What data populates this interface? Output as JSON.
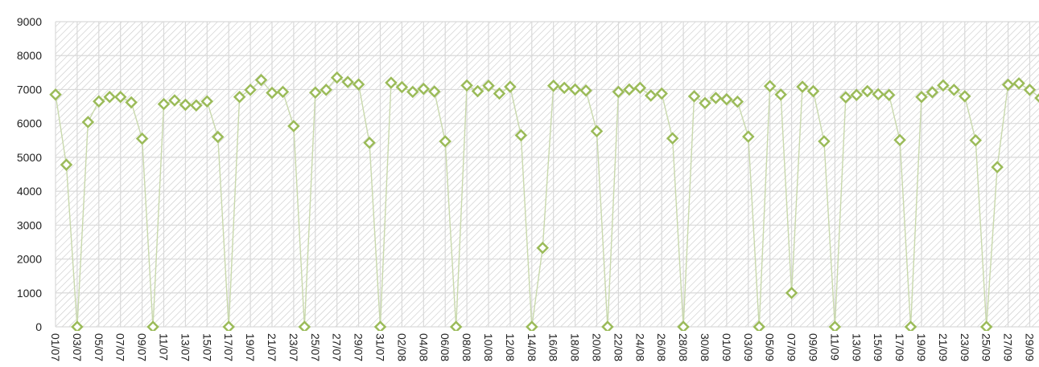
{
  "colors": {
    "series": "#9bbb59",
    "line": "#c9d9ad",
    "grid": "#d9d9d9",
    "hatch": "#bfbfbf"
  },
  "chart_data": {
    "type": "line",
    "grid": true,
    "hatched_background": true,
    "marker": "diamond",
    "ylim": [
      0,
      9000
    ],
    "y_ticks": [
      0,
      1000,
      2000,
      3000,
      4000,
      5000,
      6000,
      7000,
      8000,
      9000
    ],
    "x_tick_labels": [
      "01/07",
      "03/07",
      "05/07",
      "07/07",
      "09/07",
      "11/07",
      "13/07",
      "15/07",
      "17/07",
      "19/07",
      "21/07",
      "23/07",
      "25/07",
      "27/07",
      "29/07",
      "31/07",
      "02/08",
      "04/08",
      "06/08",
      "08/08",
      "10/08",
      "12/08",
      "14/08",
      "16/08",
      "18/08",
      "20/08",
      "22/08",
      "24/08",
      "26/08",
      "28/08",
      "30/08",
      "01/09",
      "03/09",
      "05/09",
      "07/09",
      "09/09",
      "11/09",
      "13/09",
      "15/09",
      "17/09",
      "19/09",
      "21/09",
      "23/09",
      "25/09",
      "27/09",
      "29/09"
    ],
    "series": [
      {
        "values": [
          6850,
          4780,
          0,
          6040,
          6650,
          6780,
          6780,
          6620,
          5550,
          0,
          6570,
          6680,
          6550,
          6530,
          6650,
          5600,
          0,
          6780,
          6990,
          7280,
          6900,
          6930,
          5920,
          0,
          6910,
          6990,
          7350,
          7220,
          7150,
          5430,
          0,
          7200,
          7070,
          6930,
          7020,
          6940,
          5470,
          0,
          7120,
          6950,
          7110,
          6880,
          7080,
          5650,
          0,
          2330,
          7110,
          7050,
          7000,
          6970,
          5770,
          0,
          6930,
          7000,
          7050,
          6820,
          6880,
          5560,
          0,
          6800,
          6600,
          6750,
          6710,
          6640,
          5610,
          0,
          7100,
          6850,
          1000,
          7080,
          6950,
          5470,
          0,
          6770,
          6840,
          6950,
          6860,
          6840,
          5510,
          0,
          6780,
          6920,
          7120,
          6990,
          6800,
          5500,
          0,
          4710,
          7140,
          7180,
          6990,
          6750
        ]
      }
    ]
  }
}
